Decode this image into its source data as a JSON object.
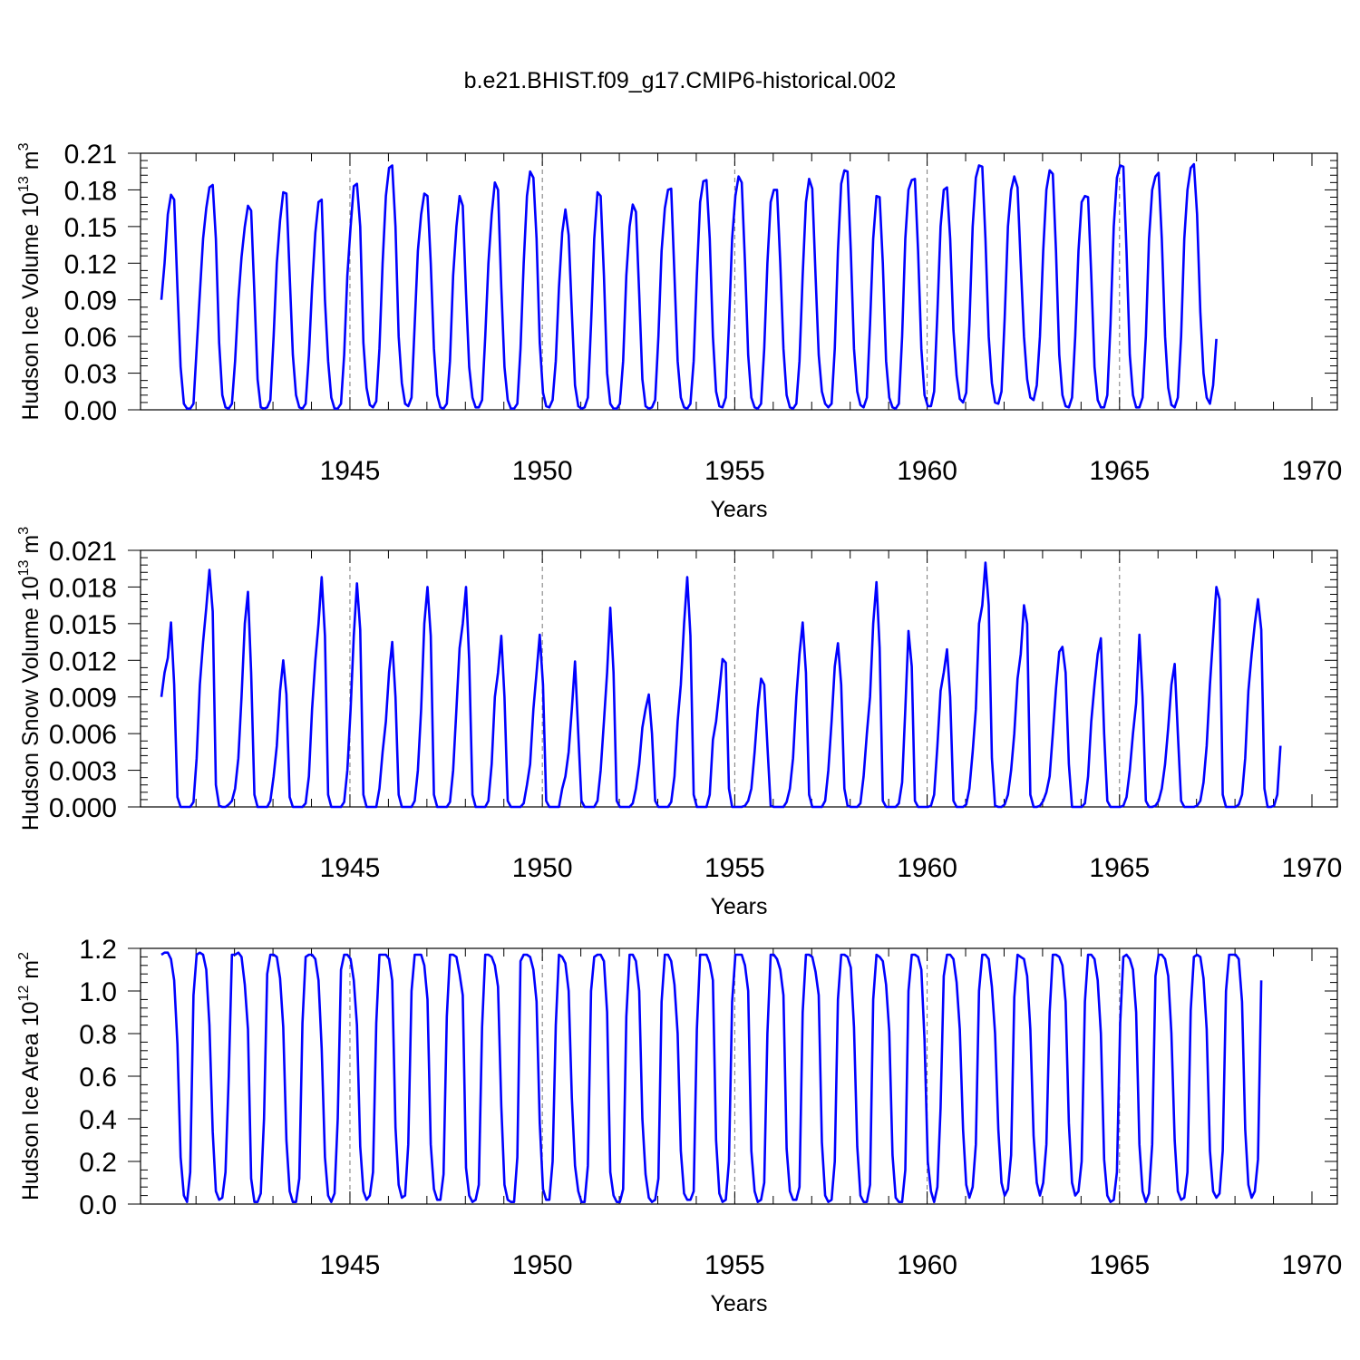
{
  "title": "b.e21.BHIST.f09_g17.CMIP6-historical.002",
  "colors": {
    "series": "#0000ff",
    "axes": "#000000",
    "grid": "#777777"
  },
  "chart_data": [
    {
      "type": "line",
      "name": "ice-volume",
      "xlabel": "Years",
      "ylabel": "Hudson Ice Volume 10",
      "ylabel_exp": "13",
      "ylabel_unit": " m",
      "ylabel_unit_exp": "3",
      "xlim": [
        1940.1,
        1970.0
      ],
      "ylim": [
        0.0,
        0.21
      ],
      "yticks": [
        "0.00",
        "0.03",
        "0.06",
        "0.09",
        "0.12",
        "0.15",
        "0.18",
        "0.21"
      ],
      "xticks": [
        "1945",
        "1950",
        "1955",
        "1960",
        "1965",
        "1970"
      ],
      "grid_years": [
        1945,
        1950,
        1955,
        1960,
        1965
      ],
      "start_year": 1940.1,
      "step": 0.08333,
      "values": [
        0.09,
        0.12,
        0.16,
        0.176,
        0.172,
        0.1,
        0.035,
        0.005,
        0.001,
        0.001,
        0.005,
        0.05,
        0.095,
        0.14,
        0.165,
        0.182,
        0.184,
        0.14,
        0.055,
        0.012,
        0.002,
        0.001,
        0.005,
        0.04,
        0.09,
        0.125,
        0.15,
        0.167,
        0.163,
        0.095,
        0.025,
        0.002,
        0.001,
        0.002,
        0.008,
        0.06,
        0.12,
        0.155,
        0.178,
        0.177,
        0.11,
        0.045,
        0.012,
        0.002,
        0.001,
        0.005,
        0.045,
        0.1,
        0.145,
        0.17,
        0.172,
        0.09,
        0.04,
        0.01,
        0.001,
        0.001,
        0.005,
        0.045,
        0.11,
        0.15,
        0.183,
        0.185,
        0.15,
        0.055,
        0.018,
        0.004,
        0.002,
        0.007,
        0.05,
        0.12,
        0.175,
        0.198,
        0.2,
        0.15,
        0.06,
        0.022,
        0.005,
        0.003,
        0.01,
        0.07,
        0.13,
        0.16,
        0.177,
        0.175,
        0.12,
        0.05,
        0.012,
        0.002,
        0.001,
        0.005,
        0.04,
        0.11,
        0.15,
        0.175,
        0.167,
        0.095,
        0.035,
        0.01,
        0.002,
        0.002,
        0.008,
        0.06,
        0.12,
        0.16,
        0.186,
        0.18,
        0.1,
        0.035,
        0.008,
        0.001,
        0.001,
        0.005,
        0.05,
        0.12,
        0.175,
        0.195,
        0.19,
        0.14,
        0.055,
        0.014,
        0.003,
        0.002,
        0.008,
        0.04,
        0.1,
        0.145,
        0.164,
        0.143,
        0.08,
        0.02,
        0.003,
        0.001,
        0.002,
        0.01,
        0.07,
        0.14,
        0.178,
        0.175,
        0.11,
        0.03,
        0.005,
        0.001,
        0.001,
        0.005,
        0.04,
        0.11,
        0.15,
        0.168,
        0.162,
        0.095,
        0.025,
        0.003,
        0.001,
        0.002,
        0.008,
        0.06,
        0.13,
        0.165,
        0.18,
        0.181,
        0.11,
        0.04,
        0.01,
        0.002,
        0.001,
        0.005,
        0.04,
        0.11,
        0.17,
        0.187,
        0.188,
        0.14,
        0.06,
        0.015,
        0.003,
        0.002,
        0.01,
        0.07,
        0.14,
        0.175,
        0.191,
        0.186,
        0.12,
        0.045,
        0.01,
        0.002,
        0.001,
        0.005,
        0.05,
        0.12,
        0.17,
        0.18,
        0.18,
        0.12,
        0.05,
        0.012,
        0.002,
        0.001,
        0.005,
        0.04,
        0.11,
        0.17,
        0.189,
        0.181,
        0.11,
        0.045,
        0.015,
        0.005,
        0.002,
        0.005,
        0.05,
        0.13,
        0.185,
        0.196,
        0.195,
        0.13,
        0.05,
        0.015,
        0.004,
        0.002,
        0.01,
        0.07,
        0.14,
        0.175,
        0.174,
        0.12,
        0.04,
        0.01,
        0.002,
        0.001,
        0.005,
        0.06,
        0.14,
        0.18,
        0.188,
        0.189,
        0.13,
        0.05,
        0.012,
        0.003,
        0.003,
        0.015,
        0.08,
        0.15,
        0.18,
        0.182,
        0.14,
        0.065,
        0.028,
        0.009,
        0.006,
        0.014,
        0.07,
        0.15,
        0.19,
        0.2,
        0.199,
        0.14,
        0.06,
        0.022,
        0.006,
        0.005,
        0.015,
        0.075,
        0.15,
        0.18,
        0.191,
        0.182,
        0.12,
        0.06,
        0.025,
        0.01,
        0.008,
        0.02,
        0.06,
        0.13,
        0.18,
        0.196,
        0.193,
        0.13,
        0.045,
        0.012,
        0.003,
        0.002,
        0.01,
        0.06,
        0.13,
        0.17,
        0.175,
        0.174,
        0.11,
        0.035,
        0.008,
        0.002,
        0.002,
        0.012,
        0.07,
        0.15,
        0.19,
        0.2,
        0.199,
        0.13,
        0.045,
        0.012,
        0.002,
        0.002,
        0.01,
        0.06,
        0.14,
        0.18,
        0.191,
        0.194,
        0.14,
        0.06,
        0.018,
        0.004,
        0.002,
        0.01,
        0.06,
        0.14,
        0.18,
        0.198,
        0.201,
        0.16,
        0.08,
        0.03,
        0.01,
        0.005,
        0.02,
        0.058
      ]
    },
    {
      "type": "line",
      "name": "snow-volume",
      "xlabel": "Years",
      "ylabel": "Hudson Snow Volume 10",
      "ylabel_exp": "13",
      "ylabel_unit": " m",
      "ylabel_unit_exp": "3",
      "xlim": [
        1940.1,
        1970.0
      ],
      "ylim": [
        0.0,
        0.021
      ],
      "yticks": [
        "0.000",
        "0.003",
        "0.006",
        "0.009",
        "0.012",
        "0.015",
        "0.018",
        "0.021"
      ],
      "xticks": [
        "1945",
        "1950",
        "1955",
        "1960",
        "1965",
        "1970"
      ],
      "grid_years": [
        1945,
        1950,
        1955,
        1960,
        1965
      ],
      "start_year": 1940.1,
      "step": 0.08333,
      "values": [
        0.009,
        0.011,
        0.0122,
        0.0151,
        0.01,
        0.0008,
        0.0,
        0.0,
        0.0,
        0.0,
        0.0004,
        0.004,
        0.01,
        0.0135,
        0.0163,
        0.0194,
        0.016,
        0.0018,
        0.0001,
        0.0,
        0.0,
        0.0002,
        0.0005,
        0.0015,
        0.004,
        0.009,
        0.015,
        0.0176,
        0.011,
        0.001,
        0.0,
        0.0,
        0.0,
        0.0,
        0.0005,
        0.0025,
        0.005,
        0.0095,
        0.012,
        0.0092,
        0.0008,
        0.0,
        0.0,
        0.0,
        0.0,
        0.0003,
        0.0025,
        0.008,
        0.012,
        0.015,
        0.0188,
        0.014,
        0.001,
        0.0,
        0.0,
        0.0,
        0.0,
        0.0004,
        0.003,
        0.008,
        0.014,
        0.0183,
        0.0145,
        0.001,
        0.0,
        0.0,
        0.0,
        0.0,
        0.0015,
        0.0045,
        0.007,
        0.011,
        0.0135,
        0.009,
        0.001,
        0.0,
        0.0,
        0.0,
        0.0,
        0.0005,
        0.003,
        0.008,
        0.015,
        0.018,
        0.014,
        0.001,
        0.0,
        0.0,
        0.0,
        0.0,
        0.0004,
        0.003,
        0.008,
        0.013,
        0.015,
        0.018,
        0.012,
        0.001,
        0.0,
        0.0,
        0.0,
        0.0,
        0.0005,
        0.0035,
        0.009,
        0.011,
        0.014,
        0.009,
        0.0005,
        0.0,
        0.0,
        0.0,
        0.0,
        0.0003,
        0.0018,
        0.0035,
        0.008,
        0.011,
        0.0141,
        0.01,
        0.0005,
        0.0,
        0.0,
        0.0,
        0.0,
        0.0015,
        0.0025,
        0.0045,
        0.008,
        0.0119,
        0.006,
        0.0005,
        0.0,
        0.0,
        0.0,
        0.0,
        0.0005,
        0.003,
        0.007,
        0.011,
        0.0163,
        0.011,
        0.0005,
        0.0,
        0.0,
        0.0,
        0.0,
        0.0003,
        0.0015,
        0.0035,
        0.0065,
        0.008,
        0.0092,
        0.006,
        0.0005,
        0.0,
        0.0,
        0.0,
        0.0,
        0.0004,
        0.0025,
        0.007,
        0.01,
        0.015,
        0.0188,
        0.014,
        0.001,
        0.0,
        0.0,
        0.0,
        0.0,
        0.001,
        0.0055,
        0.007,
        0.0095,
        0.0121,
        0.0118,
        0.0015,
        0.0,
        0.0,
        0.0,
        0.0,
        0.0001,
        0.0005,
        0.0015,
        0.0045,
        0.008,
        0.0105,
        0.01,
        0.005,
        0.0001,
        0.0,
        0.0,
        0.0,
        0.0,
        0.0004,
        0.0015,
        0.004,
        0.009,
        0.0125,
        0.0151,
        0.011,
        0.001,
        0.0,
        0.0,
        0.0,
        0.0,
        0.0005,
        0.003,
        0.007,
        0.0115,
        0.0134,
        0.01,
        0.0015,
        0.0001,
        0.0,
        0.0,
        0.0,
        0.0003,
        0.0025,
        0.006,
        0.009,
        0.015,
        0.0184,
        0.013,
        0.0005,
        0.0,
        0.0,
        0.0,
        0.0,
        0.0003,
        0.002,
        0.008,
        0.0144,
        0.0115,
        0.0005,
        0.0,
        0.0,
        0.0,
        0.0,
        0.0001,
        0.001,
        0.005,
        0.0095,
        0.011,
        0.0129,
        0.009,
        0.0005,
        0.0,
        0.0,
        0.0,
        0.0002,
        0.0015,
        0.0045,
        0.008,
        0.015,
        0.0165,
        0.02,
        0.0165,
        0.004,
        0.0001,
        0.0,
        0.0,
        0.0002,
        0.001,
        0.003,
        0.006,
        0.0105,
        0.0125,
        0.0165,
        0.015,
        0.001,
        0.0,
        0.0,
        0.0001,
        0.0005,
        0.0012,
        0.0025,
        0.006,
        0.0097,
        0.0127,
        0.0131,
        0.011,
        0.0035,
        0.0,
        0.0,
        0.0,
        0.0,
        0.0003,
        0.0025,
        0.007,
        0.01,
        0.0125,
        0.0138,
        0.006,
        0.0005,
        0.0,
        0.0,
        0.0,
        0.0,
        0.0001,
        0.0008,
        0.003,
        0.006,
        0.0085,
        0.0141,
        0.009,
        0.0005,
        0.0,
        0.0,
        0.0001,
        0.0005,
        0.0015,
        0.0035,
        0.0065,
        0.01,
        0.0117,
        0.006,
        0.0005,
        0.0,
        0.0,
        0.0,
        0.0,
        0.0001,
        0.0005,
        0.002,
        0.005,
        0.01,
        0.014,
        0.018,
        0.017,
        0.001,
        0.0,
        0.0,
        0.0,
        0.0,
        0.0002,
        0.001,
        0.004,
        0.0095,
        0.0125,
        0.015,
        0.017,
        0.0145,
        0.0015,
        0.0,
        0.0,
        0.0001,
        0.001,
        0.005
      ]
    },
    {
      "type": "line",
      "name": "ice-area",
      "xlabel": "Years",
      "ylabel": "Hudson Ice Area 10",
      "ylabel_exp": "12",
      "ylabel_unit": " m",
      "ylabel_unit_exp": "2",
      "xlim": [
        1940.1,
        1970.0
      ],
      "ylim": [
        0.0,
        1.2
      ],
      "yticks": [
        "0.0",
        "0.2",
        "0.4",
        "0.6",
        "0.8",
        "1.0",
        "1.2"
      ],
      "xticks": [
        "1945",
        "1950",
        "1955",
        "1960",
        "1965",
        "1970"
      ],
      "grid_years": [
        1945,
        1950,
        1955,
        1960,
        1965
      ],
      "start_year": 1940.1,
      "step": 0.08333,
      "values": [
        1.17,
        1.18,
        1.18,
        1.15,
        1.05,
        0.75,
        0.22,
        0.04,
        0.01,
        0.15,
        0.98,
        1.17,
        1.18,
        1.17,
        1.1,
        0.84,
        0.34,
        0.06,
        0.02,
        0.03,
        0.15,
        0.6,
        1.17,
        1.17,
        1.18,
        1.16,
        1.03,
        0.82,
        0.12,
        0.01,
        0.01,
        0.05,
        0.4,
        1.08,
        1.17,
        1.17,
        1.16,
        1.06,
        0.83,
        0.3,
        0.06,
        0.01,
        0.01,
        0.12,
        0.85,
        1.16,
        1.17,
        1.17,
        1.15,
        1.05,
        0.73,
        0.22,
        0.04,
        0.01,
        0.05,
        0.4,
        1.1,
        1.17,
        1.17,
        1.15,
        1.05,
        0.84,
        0.27,
        0.06,
        0.02,
        0.04,
        0.15,
        0.85,
        1.17,
        1.17,
        1.17,
        1.15,
        1.05,
        0.36,
        0.09,
        0.03,
        0.04,
        0.28,
        1.0,
        1.17,
        1.17,
        1.17,
        1.12,
        0.96,
        0.28,
        0.07,
        0.02,
        0.02,
        0.14,
        0.88,
        1.17,
        1.17,
        1.16,
        1.08,
        0.98,
        0.17,
        0.04,
        0.01,
        0.02,
        0.09,
        0.83,
        1.17,
        1.17,
        1.16,
        1.12,
        1.02,
        0.46,
        0.09,
        0.02,
        0.01,
        0.01,
        0.22,
        1.14,
        1.17,
        1.17,
        1.16,
        1.1,
        0.95,
        0.38,
        0.07,
        0.02,
        0.02,
        0.2,
        0.84,
        1.17,
        1.16,
        1.13,
        1.0,
        0.5,
        0.18,
        0.06,
        0.01,
        0.01,
        0.18,
        1.0,
        1.16,
        1.17,
        1.17,
        1.14,
        0.9,
        0.15,
        0.04,
        0.01,
        0.01,
        0.07,
        0.88,
        1.17,
        1.17,
        1.14,
        1.0,
        0.4,
        0.14,
        0.03,
        0.01,
        0.02,
        0.12,
        0.95,
        1.17,
        1.17,
        1.14,
        1.03,
        0.8,
        0.25,
        0.05,
        0.02,
        0.02,
        0.06,
        0.82,
        1.17,
        1.17,
        1.17,
        1.13,
        1.05,
        0.3,
        0.05,
        0.01,
        0.02,
        0.2,
        0.95,
        1.17,
        1.17,
        1.17,
        1.12,
        1.0,
        0.25,
        0.06,
        0.01,
        0.02,
        0.1,
        0.8,
        1.17,
        1.17,
        1.15,
        1.1,
        0.98,
        0.26,
        0.06,
        0.02,
        0.02,
        0.08,
        0.9,
        1.17,
        1.17,
        1.16,
        1.09,
        0.98,
        0.29,
        0.04,
        0.01,
        0.02,
        0.2,
        0.96,
        1.17,
        1.17,
        1.16,
        1.11,
        0.83,
        0.27,
        0.04,
        0.01,
        0.01,
        0.09,
        0.96,
        1.17,
        1.16,
        1.14,
        1.03,
        0.81,
        0.23,
        0.03,
        0.01,
        0.01,
        0.16,
        1.0,
        1.17,
        1.17,
        1.16,
        1.1,
        0.77,
        0.2,
        0.06,
        0.01,
        0.08,
        0.45,
        1.07,
        1.17,
        1.17,
        1.15,
        1.04,
        0.82,
        0.35,
        0.09,
        0.03,
        0.08,
        0.28,
        1.0,
        1.17,
        1.17,
        1.15,
        1.02,
        0.8,
        0.35,
        0.1,
        0.04,
        0.07,
        0.23,
        0.97,
        1.17,
        1.16,
        1.15,
        1.07,
        0.82,
        0.32,
        0.1,
        0.04,
        0.1,
        0.28,
        0.9,
        1.17,
        1.17,
        1.16,
        1.12,
        0.95,
        0.38,
        0.1,
        0.04,
        0.06,
        0.2,
        0.95,
        1.17,
        1.17,
        1.15,
        1.05,
        0.8,
        0.21,
        0.04,
        0.01,
        0.02,
        0.15,
        0.85,
        1.16,
        1.17,
        1.15,
        1.1,
        0.9,
        0.28,
        0.06,
        0.01,
        0.05,
        0.28,
        1.07,
        1.17,
        1.17,
        1.15,
        1.07,
        0.8,
        0.3,
        0.06,
        0.02,
        0.03,
        0.15,
        0.91,
        1.16,
        1.17,
        1.16,
        1.06,
        0.82,
        0.25,
        0.06,
        0.03,
        0.05,
        0.25,
        1.0,
        1.17,
        1.17,
        1.17,
        1.15,
        0.95,
        0.35,
        0.09,
        0.03,
        0.06,
        0.21,
        1.05
      ]
    }
  ]
}
